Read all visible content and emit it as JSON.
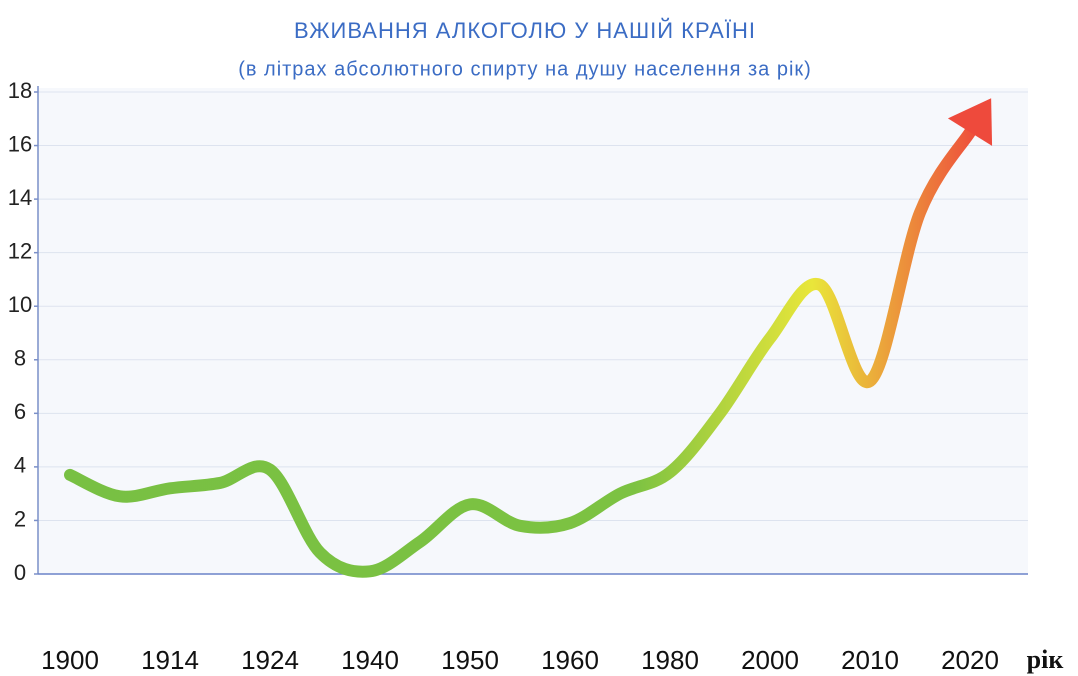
{
  "chart_data": {
    "type": "line",
    "title": "ВЖИВАННЯ АЛКОГОЛЮ У НАШІЙ КРАЇНІ",
    "subtitle": "(в літрах абсолютного спирту на душу населення за рік)",
    "x_label": "рік",
    "categories": [
      "1900",
      null,
      "1914",
      null,
      "1924",
      null,
      "1940",
      null,
      "1950",
      null,
      "1960",
      null,
      "1980",
      null,
      "2000",
      null,
      "2010",
      null,
      "2020"
    ],
    "values": [
      3.7,
      2.9,
      3.2,
      3.4,
      3.9,
      0.8,
      0.1,
      1.2,
      2.6,
      1.8,
      1.9,
      3.0,
      3.8,
      6.0,
      8.8,
      10.8,
      7.2,
      13.5,
      16.5
    ],
    "colors": [
      "#78c043",
      "#7cc242",
      "#e9e63a",
      "#ee4a3c"
    ],
    "ylim": [
      0,
      18
    ],
    "yticks": [
      0,
      2,
      4,
      6,
      8,
      10,
      12,
      14,
      16,
      18
    ],
    "grid": true
  }
}
